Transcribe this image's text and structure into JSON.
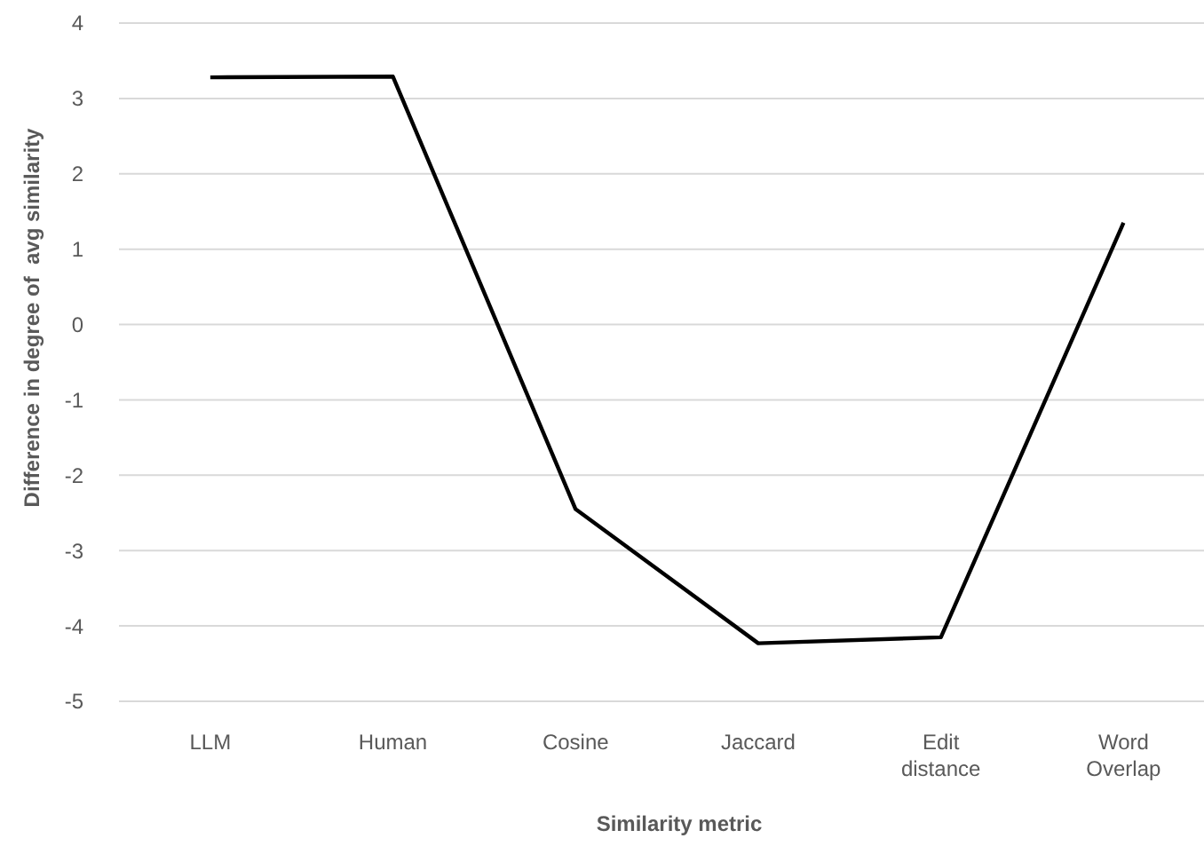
{
  "chart_data": {
    "type": "line",
    "xlabel": "Similarity metric",
    "ylabel": "Difference in degree of  avg similarity",
    "categories": [
      "LLM",
      "Human",
      "Cosine",
      "Jaccard",
      "Edit distance",
      "Word Overlap"
    ],
    "series": [
      {
        "color": "#000000",
        "values": [
          3.28,
          3.29,
          -2.45,
          -4.23,
          -4.15,
          1.35
        ]
      }
    ],
    "ylim": [
      -5,
      4
    ],
    "yticks": [
      -5,
      -4,
      -3,
      -2,
      -1,
      0,
      1,
      2,
      3,
      4
    ],
    "grid": "y",
    "marker": "none",
    "line_style": "solid"
  }
}
